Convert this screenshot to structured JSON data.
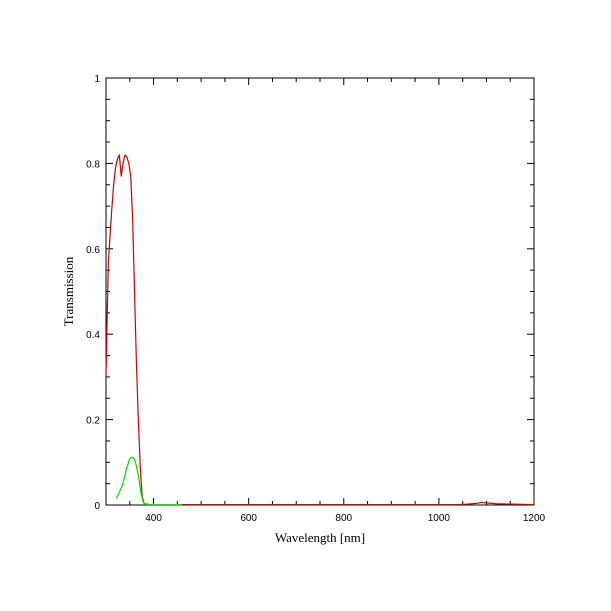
{
  "chart_data": {
    "type": "line",
    "title": "",
    "xlabel": "Wavelength [nm]",
    "ylabel": "Transmission",
    "xlim": [
      300,
      1200
    ],
    "ylim": [
      0,
      1
    ],
    "grid": false,
    "legend": "none",
    "x_ticks": [
      400,
      600,
      800,
      1000,
      1200
    ],
    "x_tick_labels": [
      "400",
      "600",
      "800",
      "1000",
      "1200"
    ],
    "y_ticks": [
      0,
      0.2,
      0.4,
      0.6,
      0.8,
      1
    ],
    "y_tick_labels": [
      "0",
      "0.2",
      "0.4",
      "0.6",
      "0.8",
      "1"
    ],
    "series": [
      {
        "color": "#cc0000",
        "x": [
          300,
          302,
          305,
          308,
          312,
          316,
          320,
          324,
          328,
          332,
          336,
          340,
          344,
          348,
          352,
          356,
          360,
          364,
          368,
          372,
          376,
          380,
          384,
          388,
          392,
          396,
          400,
          420,
          450,
          500,
          600,
          700,
          800,
          900,
          1000,
          1040,
          1060,
          1080,
          1090,
          1100,
          1120,
          1150,
          1200
        ],
        "y": [
          0.3,
          0.42,
          0.57,
          0.62,
          0.69,
          0.75,
          0.79,
          0.81,
          0.82,
          0.77,
          0.8,
          0.82,
          0.815,
          0.8,
          0.77,
          0.67,
          0.5,
          0.33,
          0.2,
          0.09,
          0.02,
          0.004,
          0.002,
          0.002,
          0.001,
          0.001,
          0.001,
          0.001,
          0.001,
          0.001,
          0.001,
          0.001,
          0.001,
          0.001,
          0.001,
          0.001,
          0.002,
          0.004,
          0.006,
          0.005,
          0.003,
          0.002,
          0.001
        ]
      },
      {
        "color": "#00dd00",
        "x": [
          322,
          326,
          330,
          334,
          338,
          342,
          346,
          350,
          354,
          358,
          362,
          366,
          370,
          374,
          378,
          382,
          386,
          390,
          395,
          400,
          420,
          440,
          460
        ],
        "y": [
          0.015,
          0.025,
          0.035,
          0.045,
          0.06,
          0.08,
          0.095,
          0.108,
          0.112,
          0.11,
          0.1,
          0.08,
          0.055,
          0.025,
          0.008,
          0.002,
          0.001,
          0.001,
          0.001,
          0.001,
          0.001,
          0.001,
          0.001
        ]
      }
    ]
  }
}
